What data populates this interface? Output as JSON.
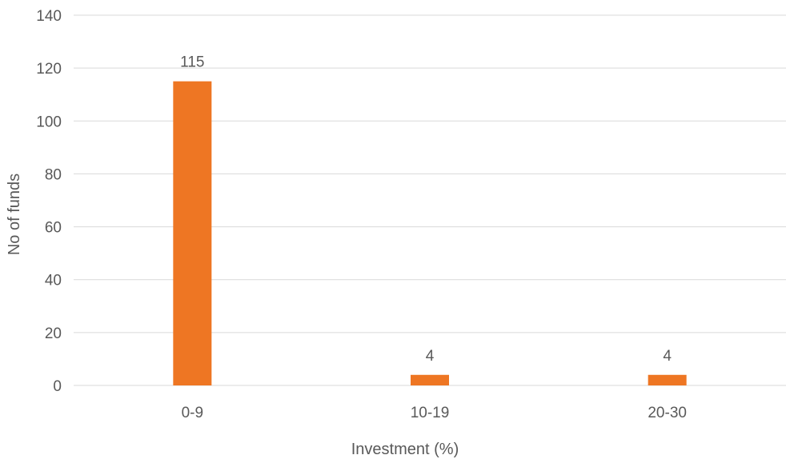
{
  "chart_data": {
    "type": "bar",
    "categories": [
      "0-9",
      "10-19",
      "20-30"
    ],
    "values": [
      115,
      4,
      4
    ],
    "data_labels": [
      "115",
      "4",
      "4"
    ],
    "title": "",
    "xlabel": "Investment (%)",
    "ylabel": "No of funds",
    "ylim": [
      0,
      140
    ],
    "yticks": [
      0,
      20,
      40,
      60,
      80,
      100,
      120,
      140
    ],
    "grid": true,
    "bar_color": "#ee7623",
    "grid_color": "#d9d9d9",
    "text_color": "#595959"
  }
}
